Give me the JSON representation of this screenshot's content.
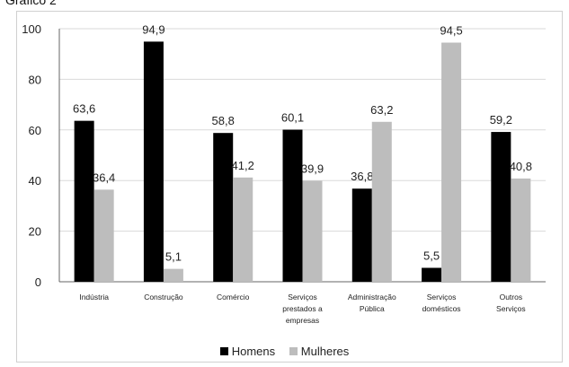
{
  "header": {
    "title_fragment": "Gráfico 2"
  },
  "chart_data": {
    "type": "bar",
    "title": "",
    "xlabel": "",
    "ylabel": "",
    "ylim": [
      0,
      100
    ],
    "yticks": [
      0,
      20,
      40,
      60,
      80,
      100
    ],
    "grid": true,
    "legend_position": "bottom",
    "categories": [
      [
        "Indústria"
      ],
      [
        "Construção"
      ],
      [
        "Comércio"
      ],
      [
        "Serviços",
        "prestados a",
        "empresas"
      ],
      [
        "Administração",
        "Pública"
      ],
      [
        "Serviços",
        "domésticos"
      ],
      [
        "Outros",
        "Serviços"
      ]
    ],
    "series": [
      {
        "name": "Homens",
        "color": "#000000",
        "values": [
          63.6,
          94.9,
          58.8,
          60.1,
          36.8,
          5.5,
          59.2
        ],
        "labels": [
          "63,6",
          "94,9",
          "58,8",
          "60,1",
          "36,8",
          "5,5",
          "59,2"
        ]
      },
      {
        "name": "Mulheres",
        "color": "#bdbdbd",
        "values": [
          36.4,
          5.1,
          41.2,
          39.9,
          63.2,
          94.5,
          40.8
        ],
        "labels": [
          "36,4",
          "5,1",
          "41,2",
          "39,9",
          "63,2",
          "94,5",
          "40,8"
        ]
      }
    ]
  }
}
